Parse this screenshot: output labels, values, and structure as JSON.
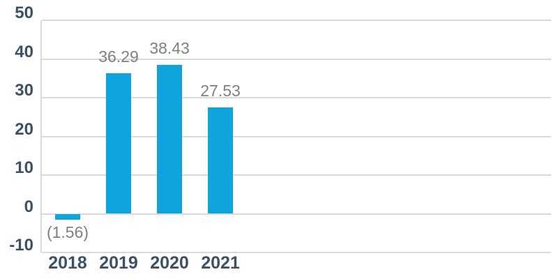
{
  "chart_data": {
    "type": "bar",
    "title": "",
    "xlabel": "",
    "ylabel": "",
    "categories": [
      "2018",
      "2019",
      "2020",
      "2021"
    ],
    "values": [
      -1.56,
      36.29,
      38.43,
      27.53
    ],
    "data_labels": [
      "(1.56)",
      "36.29",
      "38.43",
      "27.53"
    ],
    "yticks": [
      50,
      40,
      30,
      20,
      10,
      0,
      -10
    ],
    "ylim": [
      -10,
      50
    ],
    "grid": "horizontal",
    "legend": "none",
    "colors": {
      "bar": "#10a4de",
      "gridline": "#d9d9d9",
      "axis_label": "#3d5166",
      "data_label": "#7f7f7f",
      "background": "#ffffff"
    }
  }
}
